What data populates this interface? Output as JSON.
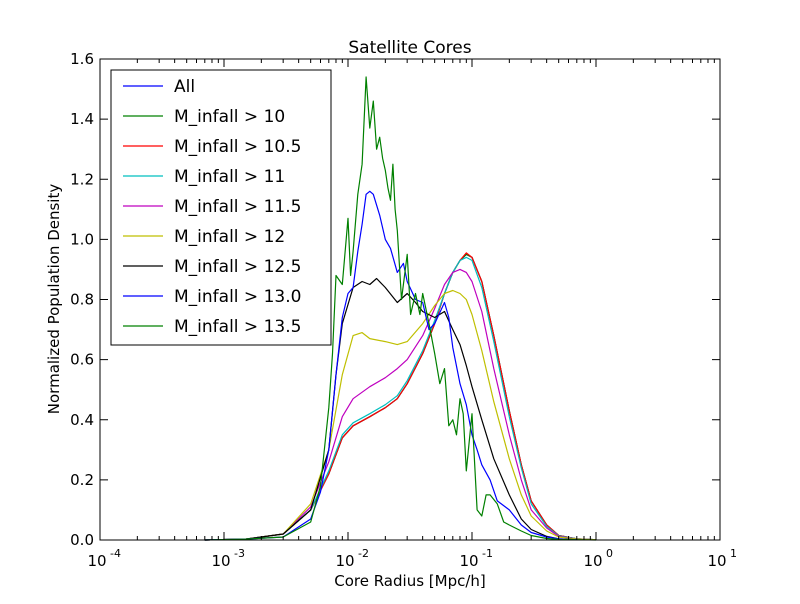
{
  "chart_data": {
    "type": "line",
    "title": "Satellite Cores",
    "xlabel": "Core Radius [Mpc/h]",
    "ylabel": "Normalized Population Density",
    "xscale": "log",
    "xlim": [
      0.0001,
      10
    ],
    "ylim": [
      0,
      1.6
    ],
    "x_ticks": [
      {
        "value": 0.0001,
        "base": "10",
        "exp": "-4"
      },
      {
        "value": 0.001,
        "base": "10",
        "exp": "-3"
      },
      {
        "value": 0.01,
        "base": "10",
        "exp": "-2"
      },
      {
        "value": 0.1,
        "base": "10",
        "exp": "-1"
      },
      {
        "value": 1,
        "base": "10",
        "exp": "0"
      },
      {
        "value": 10,
        "base": "10",
        "exp": "1"
      }
    ],
    "y_ticks": [
      "0.0",
      "0.2",
      "0.4",
      "0.6",
      "0.8",
      "1.0",
      "1.2",
      "1.4",
      "1.6"
    ],
    "grid": false,
    "legend_position": "top-left",
    "series": [
      {
        "name": "All",
        "color": "#0000ff",
        "points": [
          [
            0.0007,
            0
          ],
          [
            0.0015,
            0.003
          ],
          [
            0.003,
            0.02
          ],
          [
            0.005,
            0.1
          ],
          [
            0.007,
            0.22
          ],
          [
            0.009,
            0.34
          ],
          [
            0.011,
            0.38
          ],
          [
            0.015,
            0.41
          ],
          [
            0.02,
            0.44
          ],
          [
            0.025,
            0.47
          ],
          [
            0.03,
            0.52
          ],
          [
            0.04,
            0.62
          ],
          [
            0.05,
            0.72
          ],
          [
            0.06,
            0.82
          ],
          [
            0.07,
            0.89
          ],
          [
            0.08,
            0.93
          ],
          [
            0.09,
            0.95
          ],
          [
            0.1,
            0.94
          ],
          [
            0.12,
            0.86
          ],
          [
            0.15,
            0.68
          ],
          [
            0.2,
            0.43
          ],
          [
            0.25,
            0.25
          ],
          [
            0.3,
            0.13
          ],
          [
            0.4,
            0.05
          ],
          [
            0.5,
            0.015
          ],
          [
            0.7,
            0.004
          ],
          [
            1.0,
            0.001
          ]
        ]
      },
      {
        "name": "M_infall > 10",
        "color": "#008000",
        "points": [
          [
            0.0007,
            0
          ],
          [
            0.0015,
            0.003
          ],
          [
            0.003,
            0.02
          ],
          [
            0.005,
            0.1
          ],
          [
            0.007,
            0.22
          ],
          [
            0.009,
            0.34
          ],
          [
            0.011,
            0.38
          ],
          [
            0.015,
            0.41
          ],
          [
            0.02,
            0.44
          ],
          [
            0.025,
            0.47
          ],
          [
            0.03,
            0.52
          ],
          [
            0.04,
            0.62
          ],
          [
            0.05,
            0.72
          ],
          [
            0.06,
            0.82
          ],
          [
            0.07,
            0.89
          ],
          [
            0.08,
            0.93
          ],
          [
            0.09,
            0.95
          ],
          [
            0.1,
            0.94
          ],
          [
            0.12,
            0.86
          ],
          [
            0.15,
            0.68
          ],
          [
            0.2,
            0.43
          ],
          [
            0.25,
            0.25
          ],
          [
            0.3,
            0.13
          ],
          [
            0.4,
            0.05
          ],
          [
            0.5,
            0.015
          ],
          [
            0.7,
            0.004
          ],
          [
            1.0,
            0.001
          ]
        ]
      },
      {
        "name": "M_infall > 10.5",
        "color": "#ff0000",
        "points": [
          [
            0.0007,
            0
          ],
          [
            0.0015,
            0.003
          ],
          [
            0.003,
            0.02
          ],
          [
            0.005,
            0.1
          ],
          [
            0.007,
            0.22
          ],
          [
            0.009,
            0.34
          ],
          [
            0.011,
            0.38
          ],
          [
            0.015,
            0.41
          ],
          [
            0.02,
            0.44
          ],
          [
            0.025,
            0.47
          ],
          [
            0.03,
            0.52
          ],
          [
            0.04,
            0.62
          ],
          [
            0.05,
            0.72
          ],
          [
            0.06,
            0.82
          ],
          [
            0.07,
            0.89
          ],
          [
            0.08,
            0.93
          ],
          [
            0.09,
            0.955
          ],
          [
            0.1,
            0.94
          ],
          [
            0.12,
            0.86
          ],
          [
            0.15,
            0.68
          ],
          [
            0.2,
            0.43
          ],
          [
            0.25,
            0.25
          ],
          [
            0.3,
            0.13
          ],
          [
            0.4,
            0.05
          ],
          [
            0.5,
            0.015
          ],
          [
            0.7,
            0.004
          ],
          [
            1.0,
            0.001
          ]
        ]
      },
      {
        "name": "M_infall > 11",
        "color": "#00bfbf",
        "points": [
          [
            0.0007,
            0
          ],
          [
            0.0015,
            0.003
          ],
          [
            0.003,
            0.02
          ],
          [
            0.005,
            0.1
          ],
          [
            0.007,
            0.23
          ],
          [
            0.009,
            0.35
          ],
          [
            0.011,
            0.39
          ],
          [
            0.015,
            0.42
          ],
          [
            0.02,
            0.45
          ],
          [
            0.025,
            0.48
          ],
          [
            0.03,
            0.53
          ],
          [
            0.04,
            0.63
          ],
          [
            0.05,
            0.73
          ],
          [
            0.06,
            0.82
          ],
          [
            0.07,
            0.89
          ],
          [
            0.08,
            0.93
          ],
          [
            0.09,
            0.94
          ],
          [
            0.1,
            0.93
          ],
          [
            0.12,
            0.84
          ],
          [
            0.15,
            0.66
          ],
          [
            0.2,
            0.41
          ],
          [
            0.25,
            0.24
          ],
          [
            0.3,
            0.12
          ],
          [
            0.4,
            0.045
          ],
          [
            0.5,
            0.014
          ],
          [
            0.7,
            0.004
          ],
          [
            1.0,
            0.001
          ]
        ]
      },
      {
        "name": "M_infall > 11.5",
        "color": "#bf00bf",
        "points": [
          [
            0.0007,
            0
          ],
          [
            0.0015,
            0.003
          ],
          [
            0.003,
            0.02
          ],
          [
            0.005,
            0.11
          ],
          [
            0.007,
            0.26
          ],
          [
            0.009,
            0.41
          ],
          [
            0.011,
            0.47
          ],
          [
            0.015,
            0.51
          ],
          [
            0.02,
            0.54
          ],
          [
            0.025,
            0.57
          ],
          [
            0.03,
            0.6
          ],
          [
            0.04,
            0.68
          ],
          [
            0.05,
            0.77
          ],
          [
            0.06,
            0.85
          ],
          [
            0.07,
            0.89
          ],
          [
            0.08,
            0.9
          ],
          [
            0.09,
            0.89
          ],
          [
            0.1,
            0.86
          ],
          [
            0.12,
            0.76
          ],
          [
            0.15,
            0.57
          ],
          [
            0.2,
            0.35
          ],
          [
            0.25,
            0.2
          ],
          [
            0.3,
            0.1
          ],
          [
            0.4,
            0.04
          ],
          [
            0.5,
            0.012
          ],
          [
            0.7,
            0.003
          ],
          [
            1.0,
            0.001
          ]
        ]
      },
      {
        "name": "M_infall > 12",
        "color": "#bfbf00",
        "points": [
          [
            0.0007,
            0
          ],
          [
            0.0015,
            0.003
          ],
          [
            0.003,
            0.02
          ],
          [
            0.005,
            0.12
          ],
          [
            0.007,
            0.3
          ],
          [
            0.009,
            0.55
          ],
          [
            0.011,
            0.68
          ],
          [
            0.013,
            0.69
          ],
          [
            0.015,
            0.67
          ],
          [
            0.02,
            0.66
          ],
          [
            0.025,
            0.65
          ],
          [
            0.03,
            0.66
          ],
          [
            0.04,
            0.72
          ],
          [
            0.05,
            0.78
          ],
          [
            0.06,
            0.82
          ],
          [
            0.07,
            0.83
          ],
          [
            0.08,
            0.82
          ],
          [
            0.09,
            0.8
          ],
          [
            0.1,
            0.75
          ],
          [
            0.12,
            0.63
          ],
          [
            0.15,
            0.46
          ],
          [
            0.2,
            0.27
          ],
          [
            0.25,
            0.15
          ],
          [
            0.3,
            0.08
          ],
          [
            0.4,
            0.03
          ],
          [
            0.5,
            0.01
          ],
          [
            0.7,
            0.003
          ],
          [
            1.0,
            0.001
          ]
        ]
      },
      {
        "name": "M_infall > 12.5",
        "color": "#000000",
        "points": [
          [
            0.0007,
            0
          ],
          [
            0.0015,
            0.003
          ],
          [
            0.003,
            0.02
          ],
          [
            0.005,
            0.1
          ],
          [
            0.007,
            0.3
          ],
          [
            0.008,
            0.55
          ],
          [
            0.009,
            0.72
          ],
          [
            0.011,
            0.84
          ],
          [
            0.013,
            0.86
          ],
          [
            0.015,
            0.85
          ],
          [
            0.017,
            0.87
          ],
          [
            0.02,
            0.84
          ],
          [
            0.025,
            0.79
          ],
          [
            0.03,
            0.82
          ],
          [
            0.035,
            0.79
          ],
          [
            0.04,
            0.76
          ],
          [
            0.05,
            0.74
          ],
          [
            0.06,
            0.76
          ],
          [
            0.07,
            0.7
          ],
          [
            0.08,
            0.65
          ],
          [
            0.09,
            0.58
          ],
          [
            0.1,
            0.51
          ],
          [
            0.12,
            0.4
          ],
          [
            0.15,
            0.27
          ],
          [
            0.2,
            0.15
          ],
          [
            0.25,
            0.07
          ],
          [
            0.3,
            0.035
          ],
          [
            0.4,
            0.012
          ],
          [
            0.5,
            0.004
          ],
          [
            0.7,
            0.001
          ]
        ]
      },
      {
        "name": "M_infall > 13.0",
        "color": "#0000ff",
        "points": [
          [
            0.0007,
            0
          ],
          [
            0.0015,
            0.003
          ],
          [
            0.003,
            0.01
          ],
          [
            0.005,
            0.07
          ],
          [
            0.006,
            0.16
          ],
          [
            0.007,
            0.3
          ],
          [
            0.008,
            0.55
          ],
          [
            0.009,
            0.74
          ],
          [
            0.01,
            0.82
          ],
          [
            0.011,
            0.84
          ],
          [
            0.012,
            0.96
          ],
          [
            0.013,
            1.05
          ],
          [
            0.014,
            1.15
          ],
          [
            0.015,
            1.16
          ],
          [
            0.016,
            1.15
          ],
          [
            0.018,
            1.08
          ],
          [
            0.02,
            1.0
          ],
          [
            0.022,
            0.97
          ],
          [
            0.025,
            0.89
          ],
          [
            0.028,
            0.92
          ],
          [
            0.03,
            0.86
          ],
          [
            0.035,
            0.8
          ],
          [
            0.04,
            0.79
          ],
          [
            0.045,
            0.7
          ],
          [
            0.05,
            0.72
          ],
          [
            0.06,
            0.79
          ],
          [
            0.065,
            0.74
          ],
          [
            0.07,
            0.64
          ],
          [
            0.08,
            0.52
          ],
          [
            0.09,
            0.45
          ],
          [
            0.1,
            0.35
          ],
          [
            0.11,
            0.3
          ],
          [
            0.12,
            0.25
          ],
          [
            0.14,
            0.2
          ],
          [
            0.16,
            0.13
          ],
          [
            0.2,
            0.1
          ],
          [
            0.25,
            0.05
          ],
          [
            0.3,
            0.025
          ],
          [
            0.4,
            0.01
          ],
          [
            0.5,
            0.004
          ],
          [
            0.7,
            0.001
          ]
        ]
      },
      {
        "name": "M_infall > 13.5",
        "color": "#008000",
        "points": [
          [
            0.0007,
            0
          ],
          [
            0.0015,
            0.003
          ],
          [
            0.003,
            0.01
          ],
          [
            0.005,
            0.06
          ],
          [
            0.006,
            0.18
          ],
          [
            0.007,
            0.44
          ],
          [
            0.0075,
            0.62
          ],
          [
            0.008,
            0.88
          ],
          [
            0.009,
            0.85
          ],
          [
            0.01,
            1.07
          ],
          [
            0.0105,
            0.88
          ],
          [
            0.011,
            0.96
          ],
          [
            0.012,
            1.15
          ],
          [
            0.013,
            1.25
          ],
          [
            0.014,
            1.54
          ],
          [
            0.015,
            1.37
          ],
          [
            0.016,
            1.46
          ],
          [
            0.017,
            1.3
          ],
          [
            0.018,
            1.34
          ],
          [
            0.019,
            1.27
          ],
          [
            0.02,
            1.23
          ],
          [
            0.021,
            1.17
          ],
          [
            0.022,
            1.13
          ],
          [
            0.023,
            1.25
          ],
          [
            0.024,
            1.1
          ],
          [
            0.025,
            1.03
          ],
          [
            0.027,
            0.8
          ],
          [
            0.03,
            0.95
          ],
          [
            0.032,
            0.75
          ],
          [
            0.035,
            0.82
          ],
          [
            0.038,
            0.75
          ],
          [
            0.04,
            0.82
          ],
          [
            0.045,
            0.72
          ],
          [
            0.05,
            0.62
          ],
          [
            0.055,
            0.52
          ],
          [
            0.06,
            0.57
          ],
          [
            0.065,
            0.38
          ],
          [
            0.07,
            0.4
          ],
          [
            0.075,
            0.35
          ],
          [
            0.08,
            0.47
          ],
          [
            0.085,
            0.42
          ],
          [
            0.09,
            0.23
          ],
          [
            0.1,
            0.42
          ],
          [
            0.11,
            0.1
          ],
          [
            0.12,
            0.08
          ],
          [
            0.13,
            0.15
          ],
          [
            0.14,
            0.15
          ],
          [
            0.16,
            0.12
          ],
          [
            0.18,
            0.06
          ],
          [
            0.2,
            0.05
          ],
          [
            0.25,
            0.03
          ],
          [
            0.3,
            0.015
          ],
          [
            0.4,
            0.005
          ],
          [
            0.5,
            0.002
          ],
          [
            0.7,
            0.001
          ],
          [
            1.0,
            0
          ]
        ]
      }
    ]
  }
}
